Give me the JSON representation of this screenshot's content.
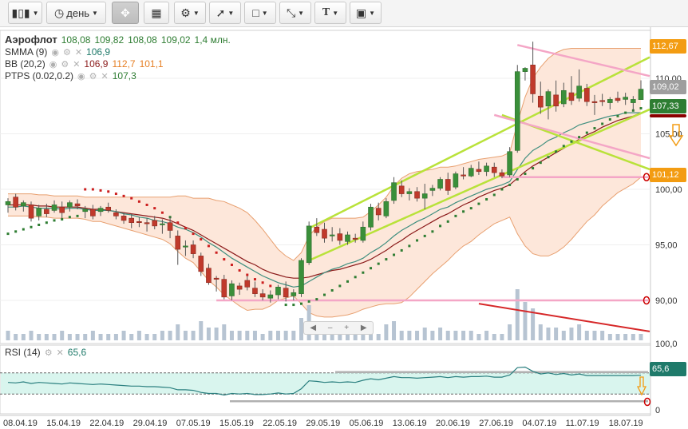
{
  "toolbar": {
    "items": [
      {
        "icon": "candles-icon"
      },
      {
        "icon": "clock-icon",
        "label": "день"
      },
      {
        "icon": "crosshair-icon"
      },
      {
        "icon": "chart-panel-icon"
      },
      {
        "icon": "indicators-icon"
      },
      {
        "icon": "line-tool-icon"
      },
      {
        "icon": "rectangle-tool-icon"
      },
      {
        "icon": "fan-tool-icon"
      },
      {
        "icon": "text-tool-icon"
      },
      {
        "icon": "image-icon"
      }
    ]
  },
  "legend": {
    "ticker": "Аэрофлот",
    "open": "108,08",
    "high": "109,82",
    "low": "108,08",
    "close": "109,02",
    "volume": "1,4 млн.",
    "smma_label": "SMMA (9)",
    "smma_value": "106,9",
    "bb_label": "BB (20,2)",
    "bb_mid": "106,9",
    "bb_upper": "112,7",
    "bb_lower": "101,1",
    "ptps_label": "PTPS (0.02,0.2)",
    "ptps_value": "107,3",
    "rsi_label": "RSI (14)",
    "rsi_value": "65,6"
  },
  "price_tags": {
    "upper": "112,67",
    "close": "109,02",
    "ptps": "107,33",
    "lower": "101,12",
    "rsi": "65,6"
  },
  "colors": {
    "up": "#3a8f3a",
    "down": "#c0392b",
    "bb_fill": "#fde7da",
    "bb_line": "#e8a070",
    "mid_line": "#8b1a1a",
    "smma_line": "#3f8f7f",
    "trend": "#b9e23a",
    "pink": "#f4a6c6",
    "red_trend": "#d62728",
    "rsi_line": "#2a7f7f",
    "rsi_fill": "#d9f5ee",
    "tag_orange": "#f39c12",
    "tag_gray": "#9e9e9e",
    "tag_green": "#2e7d32",
    "tag_teal": "#1f7a6a",
    "tag_red": "#8b0000"
  },
  "chart_data": {
    "type": "candlestick",
    "y_ticks": [
      90,
      95,
      100,
      105,
      110
    ],
    "y_tick_labels": [
      "90,00",
      "95,00",
      "100,00",
      "105,00",
      "110,00"
    ],
    "ylim": [
      88.5,
      113
    ],
    "volume_axis_label": "100,0",
    "rsi_ticks": [
      0,
      100
    ],
    "rsi_levels": [
      70,
      30
    ],
    "x_labels": [
      "08.04.19",
      "15.04.19",
      "22.04.19",
      "29.04.19",
      "07.05.19",
      "15.05.19",
      "22.05.19",
      "29.05.19",
      "05.06.19",
      "13.06.19",
      "20.06.19",
      "27.06.19",
      "04.07.19",
      "11.07.19",
      "18.07.19"
    ],
    "candles": [
      {
        "o": 98.6,
        "h": 99.2,
        "l": 97.9,
        "c": 98.9
      },
      {
        "o": 99.3,
        "h": 99.6,
        "l": 98.1,
        "c": 98.4
      },
      {
        "o": 98.5,
        "h": 99.0,
        "l": 98.0,
        "c": 98.8
      },
      {
        "o": 98.6,
        "h": 98.9,
        "l": 97.1,
        "c": 97.4
      },
      {
        "o": 97.6,
        "h": 98.6,
        "l": 97.2,
        "c": 98.3
      },
      {
        "o": 98.2,
        "h": 98.7,
        "l": 97.5,
        "c": 97.8
      },
      {
        "o": 98.1,
        "h": 99.0,
        "l": 97.9,
        "c": 98.6
      },
      {
        "o": 98.4,
        "h": 98.9,
        "l": 97.4,
        "c": 97.9
      },
      {
        "o": 98.4,
        "h": 99.0,
        "l": 98.0,
        "c": 98.8
      },
      {
        "o": 98.7,
        "h": 99.1,
        "l": 98.2,
        "c": 98.5
      },
      {
        "o": 98.0,
        "h": 98.5,
        "l": 97.4,
        "c": 98.2
      },
      {
        "o": 98.2,
        "h": 98.6,
        "l": 97.3,
        "c": 97.6
      },
      {
        "o": 98.0,
        "h": 98.5,
        "l": 97.6,
        "c": 98.3
      },
      {
        "o": 98.4,
        "h": 98.8,
        "l": 97.9,
        "c": 98.1
      },
      {
        "o": 97.9,
        "h": 98.2,
        "l": 97.3,
        "c": 97.6
      },
      {
        "o": 97.6,
        "h": 97.9,
        "l": 96.9,
        "c": 97.2
      },
      {
        "o": 97.4,
        "h": 97.8,
        "l": 96.5,
        "c": 97.0
      },
      {
        "o": 97.1,
        "h": 97.5,
        "l": 96.6,
        "c": 97.0
      },
      {
        "o": 97.0,
        "h": 97.4,
        "l": 96.2,
        "c": 96.9
      },
      {
        "o": 97.2,
        "h": 97.6,
        "l": 96.4,
        "c": 96.7
      },
      {
        "o": 96.8,
        "h": 97.3,
        "l": 96.0,
        "c": 96.9
      },
      {
        "o": 97.0,
        "h": 97.5,
        "l": 95.6,
        "c": 96.3
      },
      {
        "o": 95.8,
        "h": 96.3,
        "l": 93.2,
        "c": 94.6
      },
      {
        "o": 94.8,
        "h": 95.4,
        "l": 94.0,
        "c": 94.9
      },
      {
        "o": 95.0,
        "h": 95.4,
        "l": 93.8,
        "c": 94.2
      },
      {
        "o": 94.0,
        "h": 94.3,
        "l": 92.2,
        "c": 92.6
      },
      {
        "o": 92.9,
        "h": 93.3,
        "l": 91.4,
        "c": 91.6
      },
      {
        "o": 92.0,
        "h": 92.2,
        "l": 90.8,
        "c": 91.9
      },
      {
        "o": 91.9,
        "h": 92.3,
        "l": 90.1,
        "c": 90.3
      },
      {
        "o": 90.4,
        "h": 91.8,
        "l": 90.0,
        "c": 91.5
      },
      {
        "o": 91.3,
        "h": 91.6,
        "l": 90.5,
        "c": 91.0
      },
      {
        "o": 91.8,
        "h": 92.2,
        "l": 90.9,
        "c": 91.2
      },
      {
        "o": 91.1,
        "h": 91.7,
        "l": 90.3,
        "c": 90.6
      },
      {
        "o": 90.6,
        "h": 91.0,
        "l": 90.0,
        "c": 90.3
      },
      {
        "o": 90.2,
        "h": 90.9,
        "l": 89.8,
        "c": 90.5
      },
      {
        "o": 90.5,
        "h": 91.4,
        "l": 90.1,
        "c": 91.2
      },
      {
        "o": 91.1,
        "h": 91.7,
        "l": 89.9,
        "c": 90.3
      },
      {
        "o": 90.4,
        "h": 91.0,
        "l": 90.0,
        "c": 90.7
      },
      {
        "o": 90.6,
        "h": 93.8,
        "l": 90.3,
        "c": 93.6
      },
      {
        "o": 93.4,
        "h": 97.1,
        "l": 93.2,
        "c": 96.7
      },
      {
        "o": 96.6,
        "h": 97.4,
        "l": 95.8,
        "c": 96.1
      },
      {
        "o": 96.4,
        "h": 97.0,
        "l": 95.2,
        "c": 95.6
      },
      {
        "o": 95.8,
        "h": 96.6,
        "l": 95.3,
        "c": 95.9
      },
      {
        "o": 96.0,
        "h": 96.5,
        "l": 95.0,
        "c": 95.4
      },
      {
        "o": 95.3,
        "h": 96.2,
        "l": 95.0,
        "c": 95.9
      },
      {
        "o": 95.6,
        "h": 96.0,
        "l": 95.2,
        "c": 95.5
      },
      {
        "o": 95.4,
        "h": 97.1,
        "l": 95.2,
        "c": 96.6
      },
      {
        "o": 96.6,
        "h": 98.7,
        "l": 96.3,
        "c": 98.4
      },
      {
        "o": 98.3,
        "h": 98.8,
        "l": 97.2,
        "c": 97.7
      },
      {
        "o": 97.6,
        "h": 99.2,
        "l": 97.4,
        "c": 98.9
      },
      {
        "o": 99.0,
        "h": 101.1,
        "l": 98.7,
        "c": 100.6
      },
      {
        "o": 100.3,
        "h": 100.8,
        "l": 99.3,
        "c": 99.6
      },
      {
        "o": 99.6,
        "h": 100.1,
        "l": 99.0,
        "c": 99.8
      },
      {
        "o": 99.8,
        "h": 100.2,
        "l": 98.9,
        "c": 99.2
      },
      {
        "o": 99.2,
        "h": 100.5,
        "l": 98.2,
        "c": 99.6
      },
      {
        "o": 99.9,
        "h": 100.4,
        "l": 99.4,
        "c": 100.1
      },
      {
        "o": 100.1,
        "h": 101.1,
        "l": 99.9,
        "c": 100.9
      },
      {
        "o": 100.9,
        "h": 101.5,
        "l": 99.5,
        "c": 99.9
      },
      {
        "o": 100.2,
        "h": 101.6,
        "l": 100.0,
        "c": 101.4
      },
      {
        "o": 101.3,
        "h": 102.0,
        "l": 100.9,
        "c": 101.2
      },
      {
        "o": 101.2,
        "h": 102.2,
        "l": 101.1,
        "c": 101.9
      },
      {
        "o": 101.8,
        "h": 102.5,
        "l": 101.3,
        "c": 101.6
      },
      {
        "o": 101.6,
        "h": 102.4,
        "l": 101.2,
        "c": 102.1
      },
      {
        "o": 102.0,
        "h": 102.4,
        "l": 101.1,
        "c": 101.5
      },
      {
        "o": 101.5,
        "h": 101.8,
        "l": 101.0,
        "c": 101.2
      },
      {
        "o": 101.3,
        "h": 103.8,
        "l": 101.1,
        "c": 103.4
      },
      {
        "o": 103.5,
        "h": 111.2,
        "l": 103.3,
        "c": 110.6
      },
      {
        "o": 110.6,
        "h": 111.0,
        "l": 109.8,
        "c": 110.9
      },
      {
        "o": 111.2,
        "h": 113.3,
        "l": 107.8,
        "c": 108.6
      },
      {
        "o": 108.4,
        "h": 109.7,
        "l": 106.8,
        "c": 107.4
      },
      {
        "o": 107.5,
        "h": 109.0,
        "l": 106.3,
        "c": 108.8
      },
      {
        "o": 108.5,
        "h": 109.8,
        "l": 107.0,
        "c": 107.5
      },
      {
        "o": 107.7,
        "h": 109.6,
        "l": 107.4,
        "c": 108.9
      },
      {
        "o": 108.7,
        "h": 110.2,
        "l": 107.6,
        "c": 108.0
      },
      {
        "o": 108.2,
        "h": 110.8,
        "l": 107.9,
        "c": 109.3
      },
      {
        "o": 109.1,
        "h": 109.5,
        "l": 107.5,
        "c": 107.9
      },
      {
        "o": 107.9,
        "h": 108.5,
        "l": 106.7,
        "c": 107.8
      },
      {
        "o": 108.0,
        "h": 108.6,
        "l": 107.5,
        "c": 107.9
      },
      {
        "o": 107.8,
        "h": 108.3,
        "l": 107.2,
        "c": 108.1
      },
      {
        "o": 108.2,
        "h": 108.8,
        "l": 107.8,
        "c": 108.0
      },
      {
        "o": 108.1,
        "h": 108.7,
        "l": 107.6,
        "c": 108.3
      },
      {
        "o": 107.8,
        "h": 108.4,
        "l": 107.1,
        "c": 108.1
      },
      {
        "o": 108.08,
        "h": 109.82,
        "l": 108.08,
        "c": 109.02
      }
    ],
    "volume": [
      3,
      2,
      2,
      3,
      2,
      2,
      2,
      3,
      2,
      2,
      2,
      3,
      2,
      2,
      2,
      3,
      2,
      3,
      2,
      2,
      3,
      3,
      5,
      3,
      3,
      6,
      4,
      4,
      5,
      3,
      3,
      3,
      3,
      2,
      3,
      3,
      3,
      3,
      7,
      11,
      5,
      5,
      3,
      3,
      3,
      2,
      4,
      3,
      2,
      5,
      6,
      3,
      3,
      3,
      4,
      3,
      4,
      3,
      3,
      3,
      3,
      2,
      3,
      2,
      2,
      5,
      16,
      12,
      10,
      5,
      4,
      4,
      3,
      4,
      5,
      3,
      3,
      3,
      2,
      2,
      2,
      2,
      2
    ],
    "smma": [
      98.4,
      98.4,
      98.5,
      98.4,
      98.3,
      98.3,
      98.3,
      98.2,
      98.3,
      98.3,
      98.2,
      98.1,
      98.1,
      98.1,
      98.0,
      97.8,
      97.7,
      97.5,
      97.4,
      97.2,
      97.1,
      96.9,
      96.6,
      96.4,
      96.1,
      95.7,
      95.2,
      94.8,
      94.3,
      93.8,
      93.4,
      93.0,
      92.6,
      92.2,
      91.9,
      91.6,
      91.4,
      91.2,
      91.3,
      91.7,
      92.1,
      92.5,
      92.8,
      93.0,
      93.3,
      93.5,
      93.8,
      94.3,
      94.7,
      95.2,
      95.8,
      96.3,
      96.7,
      97.1,
      97.4,
      97.8,
      98.2,
      98.4,
      98.8,
      99.1,
      99.4,
      99.7,
      100.0,
      100.2,
      100.4,
      100.7,
      101.8,
      102.8,
      103.5,
      103.9,
      104.4,
      104.7,
      105.1,
      105.4,
      105.8,
      106.0,
      106.2,
      106.4,
      106.6,
      106.7,
      106.9,
      106.9,
      106.9
    ],
    "bb_mid": [
      98.6,
      98.6,
      98.6,
      98.6,
      98.5,
      98.5,
      98.4,
      98.4,
      98.4,
      98.4,
      98.3,
      98.2,
      98.2,
      98.1,
      98.0,
      97.9,
      97.8,
      97.7,
      97.6,
      97.5,
      97.4,
      97.2,
      96.9,
      96.6,
      96.3,
      95.9,
      95.5,
      95.1,
      94.7,
      94.3,
      93.9,
      93.5,
      93.2,
      92.8,
      92.5,
      92.3,
      92.1,
      92.0,
      92.0,
      92.1,
      92.3,
      92.5,
      92.7,
      92.8,
      93.0,
      93.2,
      93.4,
      93.7,
      94.1,
      94.5,
      95.0,
      95.4,
      95.9,
      96.3,
      96.7,
      97.1,
      97.5,
      97.8,
      98.2,
      98.6,
      98.9,
      99.3,
      99.6,
      99.9,
      100.1,
      100.4,
      101.0,
      101.6,
      102.1,
      102.5,
      102.9,
      103.3,
      103.7,
      104.1,
      104.5,
      104.9,
      105.2,
      105.6,
      105.9,
      106.2,
      106.4,
      106.6,
      106.9
    ],
    "bb_upper": [
      99.6,
      99.6,
      99.6,
      99.6,
      99.5,
      99.5,
      99.4,
      99.4,
      99.4,
      99.4,
      99.3,
      99.3,
      99.3,
      99.3,
      99.3,
      99.3,
      99.3,
      99.3,
      99.3,
      99.3,
      99.3,
      99.3,
      99.4,
      99.4,
      99.2,
      99.2,
      99.2,
      99.0,
      98.9,
      98.6,
      98.3,
      97.9,
      97.2,
      96.4,
      95.5,
      94.6,
      94.0,
      93.6,
      94.3,
      95.8,
      96.6,
      97.1,
      97.4,
      97.4,
      97.4,
      97.4,
      97.5,
      98.0,
      98.6,
      99.3,
      100.3,
      101.0,
      101.4,
      101.6,
      101.7,
      101.8,
      102.0,
      102.0,
      102.1,
      102.3,
      102.5,
      102.7,
      102.8,
      102.9,
      103.0,
      103.3,
      106.0,
      108.3,
      110.0,
      111.0,
      111.8,
      112.3,
      112.6,
      112.7,
      112.7,
      112.7,
      112.7,
      112.7,
      112.7,
      112.7,
      112.7,
      112.7,
      112.7
    ],
    "bb_lower": [
      97.6,
      97.6,
      97.6,
      97.6,
      97.5,
      97.5,
      97.4,
      97.4,
      97.4,
      97.4,
      97.3,
      97.1,
      97.1,
      96.9,
      96.7,
      96.5,
      96.3,
      96.1,
      95.9,
      95.7,
      95.5,
      95.1,
      94.4,
      93.8,
      93.4,
      92.6,
      91.8,
      91.2,
      90.5,
      90.0,
      89.5,
      89.1,
      89.2,
      89.2,
      89.5,
      90.0,
      90.2,
      90.4,
      89.7,
      88.9,
      88.6,
      88.5,
      88.5,
      88.6,
      88.7,
      88.9,
      89.2,
      89.4,
      89.6,
      89.7,
      89.7,
      89.8,
      90.3,
      91.0,
      91.7,
      92.4,
      93.0,
      93.6,
      94.3,
      94.9,
      95.3,
      95.9,
      96.4,
      96.9,
      97.2,
      97.5,
      96.0,
      94.9,
      94.2,
      94.0,
      94.0,
      94.3,
      94.8,
      95.5,
      96.3,
      97.1,
      97.7,
      98.5,
      99.1,
      99.7,
      100.1,
      100.5,
      101.1
    ],
    "ptps": [
      96.0,
      96.2,
      96.4,
      96.6,
      96.8,
      97.0,
      97.2,
      97.3,
      97.5,
      97.6,
      100.0,
      100.0,
      99.9,
      99.8,
      99.6,
      99.4,
      99.2,
      98.9,
      98.6,
      98.3,
      97.9,
      97.5,
      97.0,
      96.5,
      96.0,
      95.5,
      94.9,
      94.3,
      93.7,
      93.2,
      92.7,
      92.3,
      91.9,
      91.6,
      91.3,
      91.1,
      89.6,
      89.6,
      89.7,
      89.9,
      90.1,
      90.5,
      90.9,
      91.3,
      91.7,
      92.1,
      92.5,
      92.9,
      93.3,
      93.7,
      94.1,
      94.5,
      94.9,
      95.4,
      95.8,
      96.2,
      96.7,
      97.1,
      97.6,
      98.0,
      98.3,
      98.7,
      99.1,
      99.5,
      100.0,
      100.4,
      100.9,
      101.4,
      101.9,
      102.4,
      102.9,
      103.4,
      103.9,
      104.3,
      104.7,
      105.1,
      105.5,
      105.9,
      106.3,
      106.6,
      106.9,
      107.1,
      107.3
    ],
    "rsi": [
      52,
      51,
      53,
      50,
      52,
      51,
      50,
      49,
      51,
      50,
      49,
      48,
      49,
      48,
      47,
      46,
      45,
      45,
      44,
      44,
      43,
      42,
      38,
      38,
      37,
      33,
      31,
      31,
      28,
      31,
      30,
      31,
      29,
      29,
      30,
      32,
      30,
      31,
      40,
      55,
      54,
      52,
      53,
      52,
      53,
      52,
      56,
      59,
      57,
      60,
      63,
      61,
      61,
      60,
      61,
      62,
      63,
      61,
      63,
      62,
      63,
      63,
      64,
      62,
      62,
      66,
      80,
      81,
      73,
      68,
      70,
      67,
      69,
      66,
      68,
      65,
      65,
      65,
      65,
      65,
      65,
      65,
      65.6
    ],
    "annotations": [
      {
        "kind": "trend",
        "color": "trend",
        "from": [
          "c38",
          96.6
        ],
        "to": [
          83,
          111.9
        ]
      },
      {
        "kind": "trend",
        "color": "trend",
        "from": [
          39,
          93.6
        ],
        "to": [
          83,
          107.2
        ]
      },
      {
        "kind": "trend",
        "color": "trend",
        "from": [
          64,
          106.7
        ],
        "to": [
          83,
          101.8
        ]
      },
      {
        "kind": "trend",
        "color": "pink",
        "from": [
          66,
          113.0
        ],
        "to": [
          83,
          110.2
        ]
      },
      {
        "kind": "trend",
        "color": "pink",
        "from": [
          63,
          106.7
        ],
        "to": [
          83,
          102.8
        ]
      },
      {
        "kind": "hline",
        "color": "pink",
        "value": 90.0,
        "from": 27
      },
      {
        "kind": "hline",
        "color": "pink",
        "value": 101.1,
        "from": 64
      },
      {
        "kind": "trend",
        "color": "red_trend",
        "from": [
          61,
          89.7
        ],
        "to": [
          83,
          87.2
        ]
      }
    ]
  }
}
